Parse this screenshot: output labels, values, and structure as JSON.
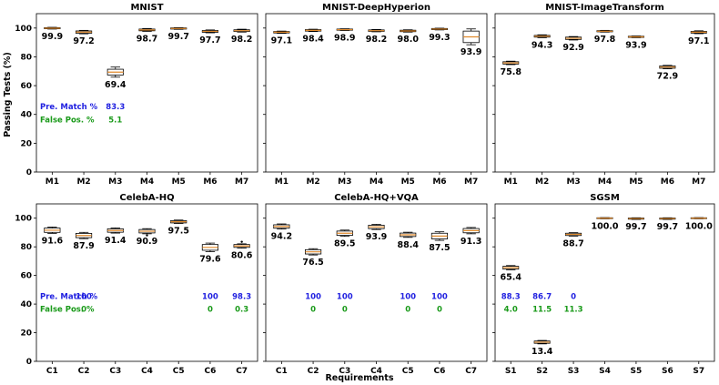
{
  "chart_data": {
    "type": "box",
    "ylabel": "Passing Tests (%)",
    "xlabel": "Requirements",
    "ylim": [
      0,
      100
    ],
    "yticks": [
      0,
      20,
      40,
      60,
      80,
      100
    ],
    "colors": {
      "median": "#e08a2c",
      "box_fill": "#ffffff",
      "box_edge": "#000000",
      "blue": "#1f1fe0",
      "green": "#1a9a1a"
    },
    "panels": [
      {
        "title": "MNIST",
        "categories": [
          "M1",
          "M2",
          "M3",
          "M4",
          "M5",
          "M6",
          "M7"
        ],
        "values": [
          99.9,
          97.2,
          69.4,
          98.7,
          99.7,
          97.7,
          98.2
        ],
        "value_labels": [
          "99.9",
          "97.2",
          "69.4",
          "98.7",
          "99.7",
          "97.7",
          "98.2"
        ],
        "spread": [
          0.4,
          0.8,
          2.0,
          0.6,
          0.4,
          0.6,
          0.6
        ],
        "whisker": [
          0.6,
          1.2,
          3.5,
          1.0,
          0.6,
          1.0,
          1.0
        ],
        "annotations": {
          "pre_label": "Pre. Match %",
          "false_label": "False Pos. %",
          "pre": [
            {
              "category": "M3",
              "value": "83.3"
            }
          ],
          "false": [
            {
              "category": "M3",
              "value": "5.1"
            }
          ]
        }
      },
      {
        "title": "MNIST-DeepHyperion",
        "categories": [
          "M1",
          "M2",
          "M3",
          "M4",
          "M5",
          "M6",
          "M7"
        ],
        "values": [
          97.1,
          98.4,
          98.9,
          98.2,
          98.0,
          99.3,
          93.9
        ],
        "value_labels": [
          "97.1",
          "98.4",
          "98.9",
          "98.2",
          "98.0",
          "99.3",
          "93.9"
        ],
        "spread": [
          0.5,
          0.5,
          0.4,
          0.5,
          0.5,
          0.4,
          4.0
        ],
        "whisker": [
          0.8,
          0.8,
          0.6,
          0.8,
          0.8,
          0.6,
          5.5
        ]
      },
      {
        "title": "MNIST-ImageTransform",
        "categories": [
          "M1",
          "M2",
          "M3",
          "M4",
          "M5",
          "M6",
          "M7"
        ],
        "values": [
          75.8,
          94.3,
          92.9,
          97.8,
          93.9,
          72.9,
          97.1
        ],
        "value_labels": [
          "75.8",
          "94.3",
          "92.9",
          "97.8",
          "93.9",
          "72.9",
          "97.1"
        ],
        "spread": [
          0.8,
          0.6,
          0.8,
          0.4,
          0.4,
          0.8,
          0.6
        ],
        "whisker": [
          1.2,
          1.0,
          1.2,
          0.6,
          0.6,
          1.2,
          1.0
        ]
      },
      {
        "title": "CelebA-HQ",
        "categories": [
          "C1",
          "C2",
          "C3",
          "C4",
          "C5",
          "C6",
          "C7"
        ],
        "values": [
          91.6,
          87.9,
          91.4,
          90.9,
          97.5,
          79.6,
          80.6
        ],
        "value_labels": [
          "91.6",
          "87.9",
          "91.4",
          "90.9",
          "97.5",
          "79.6",
          "80.6"
        ],
        "spread": [
          1.5,
          1.5,
          1.2,
          1.2,
          0.8,
          2.0,
          1.0
        ],
        "whisker": [
          2.2,
          2.2,
          1.8,
          1.8,
          1.2,
          3.0,
          1.5
        ],
        "outliers": [
          [],
          [],
          [],
          [
            88.0
          ],
          [],
          [],
          [
            83.5
          ]
        ],
        "annotations": {
          "pre_label": "Pre. Match %",
          "false_label": "False Pos. %",
          "pre": [
            {
              "category": "C2",
              "value": "100"
            },
            {
              "category": "C6",
              "value": "100"
            },
            {
              "category": "C7",
              "value": "98.3"
            }
          ],
          "false": [
            {
              "category": "C2",
              "value": "0"
            },
            {
              "category": "C6",
              "value": "0"
            },
            {
              "category": "C7",
              "value": "0.3"
            }
          ]
        }
      },
      {
        "title": "CelebA-HQ+VQA",
        "categories": [
          "C1",
          "C2",
          "C3",
          "C4",
          "C5",
          "C6",
          "C7"
        ],
        "values": [
          94.2,
          76.5,
          89.5,
          93.9,
          88.4,
          87.5,
          91.3
        ],
        "value_labels": [
          "94.2",
          "76.5",
          "89.5",
          "93.9",
          "88.4",
          "87.5",
          "91.3"
        ],
        "spread": [
          1.2,
          1.5,
          1.5,
          1.2,
          1.2,
          2.0,
          1.5
        ],
        "whisker": [
          1.8,
          2.2,
          2.2,
          1.8,
          1.8,
          3.0,
          2.2
        ],
        "annotations": {
          "pre": [
            {
              "category": "C2",
              "value": "100"
            },
            {
              "category": "C3",
              "value": "100"
            },
            {
              "category": "C5",
              "value": "100"
            },
            {
              "category": "C6",
              "value": "100"
            }
          ],
          "false": [
            {
              "category": "C2",
              "value": "0"
            },
            {
              "category": "C3",
              "value": "0"
            },
            {
              "category": "C5",
              "value": "0"
            },
            {
              "category": "C6",
              "value": "0"
            }
          ]
        }
      },
      {
        "title": "SGSM",
        "categories": [
          "S1",
          "S2",
          "S3",
          "S4",
          "S5",
          "S6",
          "S7"
        ],
        "values": [
          65.4,
          13.4,
          88.7,
          100.0,
          99.7,
          99.7,
          100.0
        ],
        "value_labels": [
          "65.4",
          "13.4",
          "88.7",
          "100.0",
          "99.7",
          "99.7",
          "100.0"
        ],
        "spread": [
          1.0,
          0.8,
          0.8,
          0.3,
          0.4,
          0.4,
          0.3
        ],
        "whisker": [
          1.5,
          1.2,
          1.2,
          0.4,
          0.6,
          0.6,
          0.4
        ],
        "annotations": {
          "pre": [
            {
              "category": "S1",
              "value": "88.3"
            },
            {
              "category": "S2",
              "value": "86.7"
            },
            {
              "category": "S3",
              "value": "0"
            }
          ],
          "false": [
            {
              "category": "S1",
              "value": "4.0"
            },
            {
              "category": "S2",
              "value": "11.5"
            },
            {
              "category": "S3",
              "value": "11.3"
            }
          ]
        }
      }
    ]
  }
}
